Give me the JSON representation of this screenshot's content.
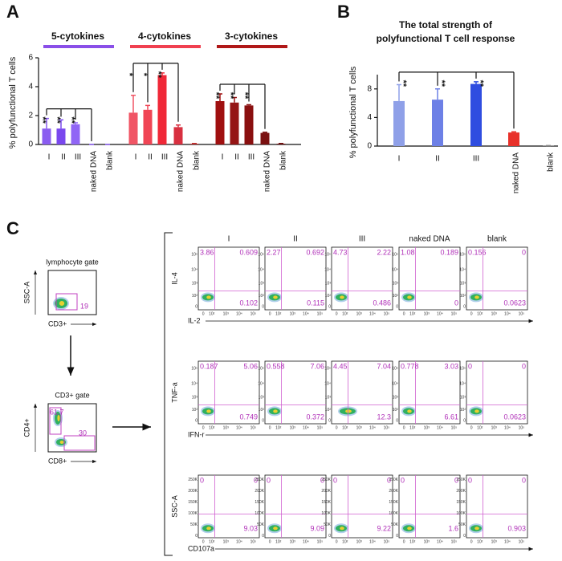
{
  "labels": {
    "a": "A",
    "b": "B",
    "c": "C"
  },
  "chart_data": [
    {
      "type": "grouped-bar",
      "y_label": "% polyfunctional T cells",
      "categories": [
        "I",
        "II",
        "III",
        "naked DNA",
        "blank"
      ],
      "ylim": [
        0,
        6
      ],
      "yticks": [
        0,
        2,
        4,
        6
      ],
      "groups": [
        {
          "name": "5-cytokines",
          "color": "#8a4fe8",
          "bar_colors": [
            "#8a5cf0",
            "#7a48ee",
            "#9065f5",
            "#8a5cf0",
            "#8a5cf0"
          ],
          "values": [
            1.1,
            1.1,
            1.4,
            0,
            0
          ],
          "errors": [
            0.7,
            0.6,
            0.1,
            0,
            0
          ],
          "stars": [
            "**",
            "**",
            "**"
          ]
        },
        {
          "name": "4-cytokines",
          "color": "#f04050",
          "bar_colors": [
            "#f05565",
            "#f04555",
            "#f02838",
            "#d83040",
            "#c03030"
          ],
          "values": [
            2.2,
            2.4,
            4.8,
            1.2,
            0.05
          ],
          "errors": [
            1.2,
            0.3,
            0.15,
            0.15,
            0.02
          ],
          "stars": [
            "*",
            "*",
            "**"
          ]
        },
        {
          "name": "3-cytokines",
          "color": "#b01818",
          "bar_colors": [
            "#a01010",
            "#951515",
            "#8a1010",
            "#7a1010",
            "#701010"
          ],
          "values": [
            3.0,
            2.9,
            2.7,
            0.8,
            0.05
          ],
          "errors": [
            0.5,
            0.35,
            0.05,
            0.05,
            0.02
          ],
          "stars": [
            "**",
            "**",
            "**"
          ]
        }
      ]
    },
    {
      "type": "bar",
      "title": [
        "The total strength of",
        "polyfunctional T cell response"
      ],
      "y_label": "% polyfunctional T cells",
      "categories": [
        "I",
        "II",
        "III",
        "naked DNA",
        "blank"
      ],
      "values": [
        6.3,
        6.5,
        8.7,
        1.9,
        0.05
      ],
      "errors": [
        2.3,
        1.5,
        0.3,
        0.1,
        0.02
      ],
      "colors": [
        "#8fa0e8",
        "#6d80e6",
        "#2f4de0",
        "#e8312a",
        "#888888"
      ],
      "stars": [
        "**",
        "**",
        "**"
      ],
      "ylim": [
        0,
        10
      ],
      "yticks": [
        0,
        4,
        8
      ]
    }
  ],
  "panel_c": {
    "gates": [
      {
        "title": "lymphocyte gate",
        "y_label": "SSC-A",
        "x_label": "CD3+",
        "numbers": [
          19
        ]
      },
      {
        "title": "CD3+ gate",
        "y_label": "CD4+",
        "x_label": "CD8+",
        "numbers": [
          61.7,
          30
        ]
      }
    ],
    "columns": [
      "I",
      "II",
      "III",
      "naked DNA",
      "blank"
    ],
    "log_ticks": [
      "0",
      "10²",
      "10³",
      "10⁴",
      "10⁵"
    ],
    "lin_ticks": [
      "0",
      "50K",
      "100K",
      "150K",
      "200K",
      "250K"
    ],
    "rows": [
      {
        "y_label": "IL-4",
        "x_label": "IL-2",
        "quadrants": [
          [
            3.86,
            0.609,
            0.102
          ],
          [
            2.27,
            0.692,
            0.115
          ],
          [
            4.73,
            2.22,
            0.486
          ],
          [
            1.08,
            0.189,
            0
          ],
          [
            0.156,
            0,
            0.0623
          ]
        ]
      },
      {
        "y_label": "TNF-a",
        "x_label": "IFN-r",
        "quadrants": [
          [
            0.187,
            5.06,
            0.749
          ],
          [
            0.558,
            7.06,
            0.372
          ],
          [
            4.45,
            7.04,
            12.3
          ],
          [
            0.778,
            3.03,
            6.61
          ],
          [
            0,
            0,
            0.0623
          ]
        ]
      },
      {
        "y_label": "SSC-A",
        "x_label": "CD107a",
        "quadrants": [
          [
            0,
            0,
            9.03
          ],
          [
            0,
            0,
            9.09
          ],
          [
            0,
            0,
            9.22
          ],
          [
            0,
            0,
            1.6
          ],
          [
            0,
            0,
            0.903
          ]
        ]
      }
    ]
  }
}
